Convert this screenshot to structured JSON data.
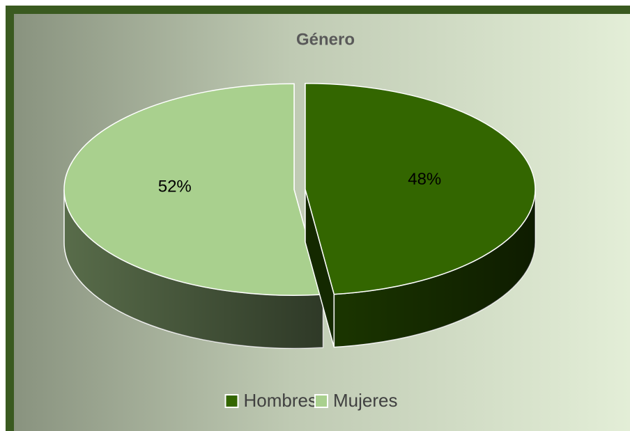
{
  "chart_data": {
    "type": "pie",
    "title": "Género",
    "categories": [
      "Hombres",
      "Mujeres"
    ],
    "values": [
      48,
      52
    ],
    "value_labels": [
      "48%",
      "52%"
    ],
    "colors": [
      "#336600",
      "#a9d08e"
    ],
    "legend": "bottom"
  }
}
